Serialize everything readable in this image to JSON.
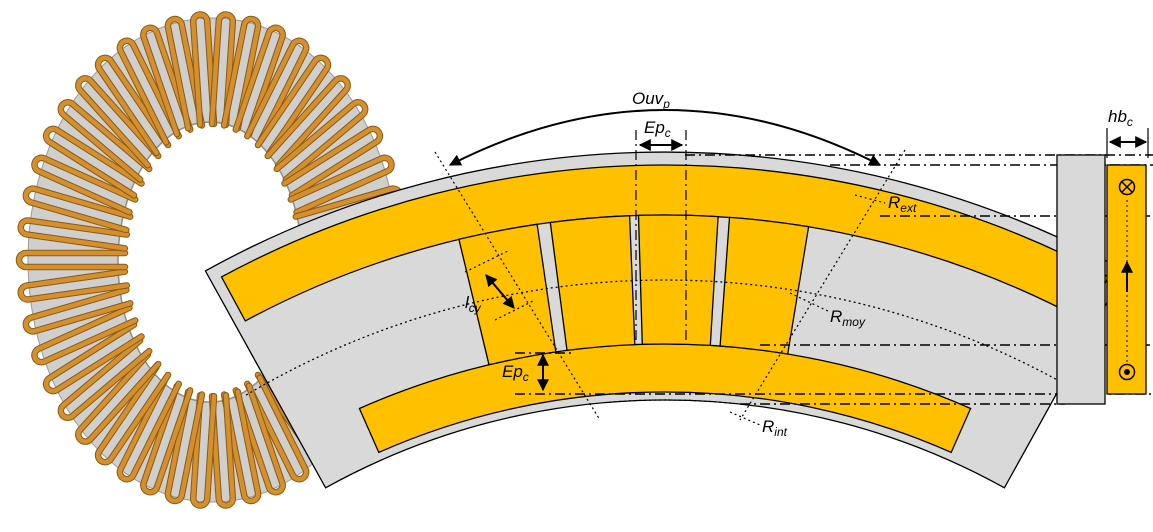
{
  "labels": {
    "ouv": "Ouv",
    "ouv_sub": "p",
    "ep_top": "Ep",
    "ep_top_sub": "c",
    "hb": "hb",
    "hb_sub": "c",
    "r_ext": "R",
    "r_ext_sub": "ext",
    "r_moy": "R",
    "r_moy_sub": "moy",
    "r_int": "R",
    "r_int_sub": "int",
    "l_cy": "l",
    "l_cy_sub": "cy",
    "ep_left": "Ep",
    "ep_left_sub": "c"
  },
  "colors": {
    "winding": "#FFC000",
    "winding_stroke": "#B38600",
    "core": "#D9D9D9",
    "coil_copper": "#D48F2E",
    "coil_dark": "#8A5A12",
    "line": "#000000"
  },
  "icons": {
    "current_out": "dot-in-circle-icon",
    "current_in": "cross-in-circle-icon",
    "current_arrow": "arrow-up-icon"
  }
}
